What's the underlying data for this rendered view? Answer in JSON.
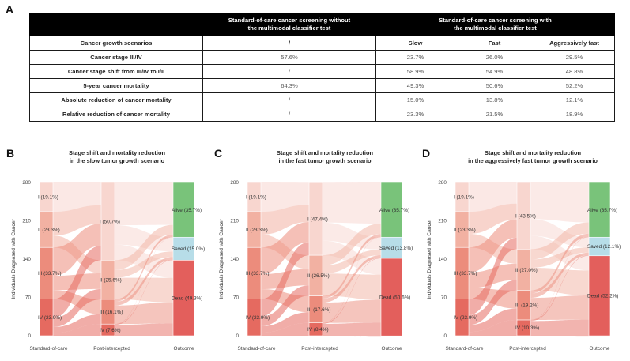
{
  "panel_a": {
    "letter": "A",
    "header_sched_label": "Standard-of-care cancer screening without the multimodal classifier test",
    "header_sched_parts": [
      "Standard-of-care cancer screening without",
      "the multimodal classifier test"
    ],
    "header_with_parts": [
      "Standard-of-care cancer screening with",
      "the multimodal classifier test"
    ],
    "subhead": {
      "label": "Cancer growth scenarios",
      "soc": "/",
      "slow": "Slow",
      "fast": "Fast",
      "aggr": "Aggressively fast"
    },
    "rows": [
      {
        "label": "Cancer stage III/IV",
        "soc": "57.6%",
        "slow": "23.7%",
        "fast": "26.0%",
        "aggr": "29.5%"
      },
      {
        "label": "Cancer stage shift from III/IV to I/II",
        "soc": "/",
        "slow": "58.9%",
        "fast": "54.9%",
        "aggr": "48.8%"
      },
      {
        "label": "5-year cancer mortality",
        "soc": "64.3%",
        "slow": "49.3%",
        "fast": "50.6%",
        "aggr": "52.2%"
      },
      {
        "label": "Absolute reduction of cancer mortality",
        "soc": "/",
        "slow": "15.0%",
        "fast": "13.8%",
        "aggr": "12.1%"
      },
      {
        "label": "Relative reduction of cancer mortality",
        "soc": "/",
        "slow": "23.3%",
        "fast": "21.5%",
        "aggr": "18.9%"
      }
    ]
  },
  "chart_data": [
    {
      "type": "sankey",
      "panel": "B",
      "title_lines": [
        "Stage shift and mortality reduction",
        "in the slow tumor growth scenario"
      ],
      "ylabel": "Individuals Diagnosed with Cancer",
      "ylim": [
        0,
        280
      ],
      "yticks": [
        0,
        70,
        140,
        210,
        280
      ],
      "xlabels": [
        "Standard-of-care",
        "Post-intercepted",
        "Outcome"
      ],
      "nodes": {
        "standard_of_care": [
          {
            "label": "I (19.1%)",
            "value": 53.5
          },
          {
            "label": "II (23.3%)",
            "value": 65.2
          },
          {
            "label": "III (33.7%)",
            "value": 94.4
          },
          {
            "label": "IV (23.9%)",
            "value": 66.9
          }
        ],
        "post_intercepted": [
          {
            "label": "I (50.7%)",
            "value": 142.0
          },
          {
            "label": "II (25.6%)",
            "value": 71.7
          },
          {
            "label": "III (16.1%)",
            "value": 45.1
          },
          {
            "label": "IV (7.6%)",
            "value": 21.3
          }
        ],
        "outcome": [
          {
            "label": "Alive (35.7%)",
            "value": 100.0
          },
          {
            "label": "Saved (15.0%)",
            "value": 42.0
          },
          {
            "label": "Dead (49.3%)",
            "value": 138.0
          }
        ]
      }
    },
    {
      "type": "sankey",
      "panel": "C",
      "title_lines": [
        "Stage shift and mortality reduction",
        "in the fast tumor growth scenario"
      ],
      "ylabel": "Individuals Diagnosed with Cancer",
      "ylim": [
        0,
        280
      ],
      "yticks": [
        0,
        70,
        140,
        210,
        280
      ],
      "xlabels": [
        "Standard-of-care",
        "Post-intercepted",
        "Outcome"
      ],
      "nodes": {
        "standard_of_care": [
          {
            "label": "I (19.1%)",
            "value": 53.5
          },
          {
            "label": "II (23.3%)",
            "value": 65.2
          },
          {
            "label": "III (33.7%)",
            "value": 94.4
          },
          {
            "label": "IV (23.9%)",
            "value": 66.9
          }
        ],
        "post_intercepted": [
          {
            "label": "I (47.4%)",
            "value": 132.7
          },
          {
            "label": "II (26.5%)",
            "value": 74.2
          },
          {
            "label": "III (17.6%)",
            "value": 49.3
          },
          {
            "label": "IV (8.4%)",
            "value": 23.5
          }
        ],
        "outcome": [
          {
            "label": "Alive (35.7%)",
            "value": 100.0
          },
          {
            "label": "Saved (13.8%)",
            "value": 38.6
          },
          {
            "label": "Dead (50.6%)",
            "value": 141.7
          }
        ]
      }
    },
    {
      "type": "sankey",
      "panel": "D",
      "title_lines": [
        "Stage shift and mortality reduction",
        "in the aggressively fast  tumor growth scenario"
      ],
      "ylabel": "Individuals Diagnosed with Cancer",
      "ylim": [
        0,
        280
      ],
      "yticks": [
        0,
        70,
        140,
        210,
        280
      ],
      "xlabels": [
        "Standard-of-care",
        "Post-intercepted",
        "Outcome"
      ],
      "nodes": {
        "standard_of_care": [
          {
            "label": "I (19.1%)",
            "value": 53.5
          },
          {
            "label": "II (23.3%)",
            "value": 65.2
          },
          {
            "label": "III (33.7%)",
            "value": 94.4
          },
          {
            "label": "IV (23.9%)",
            "value": 66.9
          }
        ],
        "post_intercepted": [
          {
            "label": "I (43.5%)",
            "value": 121.8
          },
          {
            "label": "II (27.0%)",
            "value": 75.6
          },
          {
            "label": "III (19.2%)",
            "value": 53.8
          },
          {
            "label": "IV (10.3%)",
            "value": 28.8
          }
        ],
        "outcome": [
          {
            "label": "Alive (35.7%)",
            "value": 100.0
          },
          {
            "label": "Saved (12.1%)",
            "value": 33.9
          },
          {
            "label": "Dead (52.2%)",
            "value": 146.2
          }
        ]
      }
    }
  ],
  "colors": {
    "stage_I": "#f8d6cf",
    "stage_II": "#f2b1a2",
    "stage_III": "#ec8c7c",
    "stage_IV": "#e56a60",
    "alive": "#79c37a",
    "saved": "#b7dde8",
    "dead": "#e35f5c",
    "axis": "#555555"
  }
}
